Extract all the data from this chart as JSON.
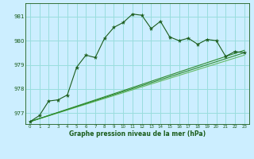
{
  "bg_color": "#cceeff",
  "grid_color": "#99dddd",
  "line_color_dark": "#1a5c1a",
  "line_color_mid": "#2e8b2e",
  "line_color_light": "#66bb66",
  "xlabel": "Graphe pression niveau de la mer (hPa)",
  "xlim": [
    -0.5,
    23.5
  ],
  "ylim": [
    976.55,
    981.55
  ],
  "yticks": [
    977,
    978,
    979,
    980,
    981
  ],
  "xticks": [
    0,
    1,
    2,
    3,
    4,
    5,
    6,
    7,
    8,
    9,
    10,
    11,
    12,
    13,
    14,
    15,
    16,
    17,
    18,
    19,
    20,
    21,
    22,
    23
  ],
  "series_main_x": [
    0,
    1,
    2,
    3,
    4,
    5,
    6,
    7,
    8,
    9,
    10,
    11,
    12,
    13,
    14,
    15,
    16,
    17,
    18,
    19,
    20,
    21,
    22,
    23
  ],
  "series_main_y": [
    976.65,
    976.9,
    977.5,
    977.55,
    977.75,
    978.9,
    979.4,
    979.3,
    980.1,
    980.55,
    980.75,
    981.1,
    981.05,
    980.5,
    980.8,
    980.15,
    980.0,
    980.1,
    979.85,
    980.05,
    980.0,
    979.35,
    979.55,
    979.5
  ],
  "series_line1_x": [
    0,
    23
  ],
  "series_line1_y": [
    976.65,
    979.4
  ],
  "series_line2_x": [
    0,
    23
  ],
  "series_line2_y": [
    976.65,
    979.5
  ],
  "series_line3_x": [
    0,
    23
  ],
  "series_line3_y": [
    976.65,
    979.6
  ]
}
